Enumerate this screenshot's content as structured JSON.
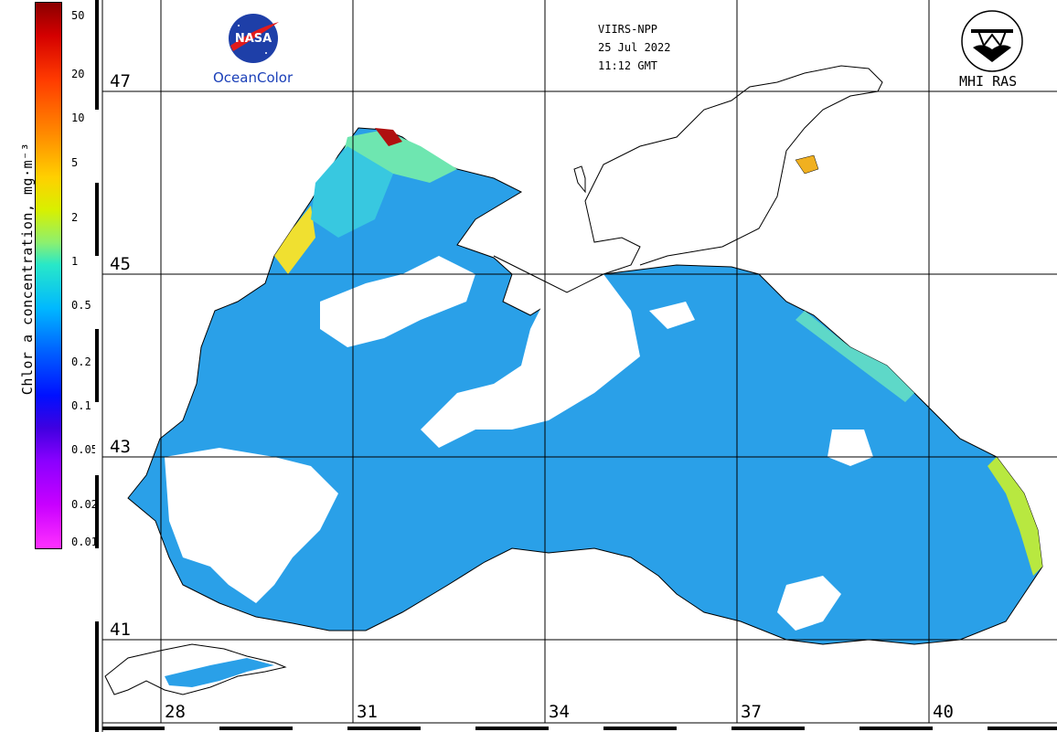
{
  "header": {
    "sensor": "VIIRS-NPP",
    "date": "25 Jul 2022",
    "time": "11:12 GMT"
  },
  "logos": {
    "left_caption": "OceanColor",
    "right_caption": "MHI RAS"
  },
  "colorbar": {
    "title": "Chlor_a concentration, mg·m⁻³",
    "ticks": [
      "50",
      "20",
      "10",
      "5",
      "2",
      "1",
      "0.5",
      "0.2",
      "0.1",
      "0.05",
      "0.02",
      "0.01"
    ],
    "scale": "log"
  },
  "map": {
    "latitudes": [
      "47",
      "45",
      "43",
      "41"
    ],
    "longitudes": [
      "28",
      "31",
      "34",
      "37",
      "40"
    ]
  },
  "colors": {
    "land": "#ffffff",
    "coastline": "#000000",
    "grid": "#000000",
    "typical_sea": "#2aa0e8"
  }
}
